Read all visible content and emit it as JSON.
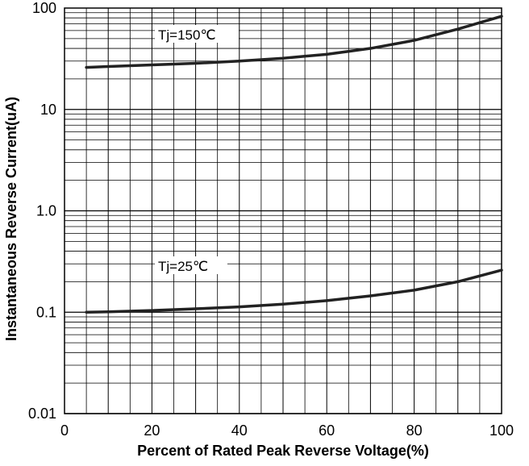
{
  "chart_data": {
    "type": "line",
    "xlabel": "Percent of Rated Peak Reverse Voltage(%)",
    "ylabel": "Instantaneous Reverse Current(uA)",
    "xlim": [
      0,
      100
    ],
    "ylim": [
      0.01,
      100
    ],
    "y_scale": "log",
    "grid": true,
    "x_ticks": [
      0,
      20,
      40,
      60,
      80,
      100
    ],
    "x_tick_labels": [
      "0",
      "20",
      "40",
      "60",
      "80",
      "100"
    ],
    "y_ticks": [
      0.01,
      0.1,
      1,
      10,
      100
    ],
    "y_tick_labels": [
      "0.01",
      "0.1",
      "1.0",
      "10",
      "100"
    ],
    "series": [
      {
        "name": "Tj=150℃",
        "x": [
          5,
          10,
          20,
          30,
          40,
          50,
          60,
          70,
          80,
          90,
          100
        ],
        "values": [
          26,
          26.5,
          27.5,
          28.5,
          30,
          32,
          35,
          40,
          48,
          62,
          83
        ]
      },
      {
        "name": "Tj=25℃",
        "x": [
          5,
          10,
          20,
          30,
          40,
          50,
          60,
          70,
          80,
          90,
          100
        ],
        "values": [
          0.1,
          0.101,
          0.104,
          0.108,
          0.113,
          0.12,
          0.13,
          0.145,
          0.165,
          0.2,
          0.26
        ]
      }
    ]
  }
}
